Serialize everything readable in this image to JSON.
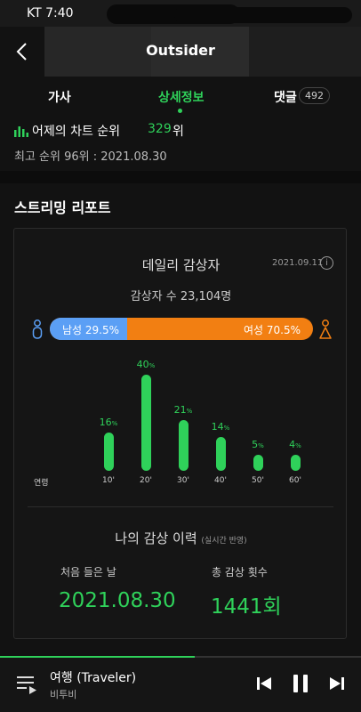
{
  "status_bar": {
    "carrier_time": "KT 7:40"
  },
  "header": {
    "title": "Outsider"
  },
  "tabs": [
    {
      "label": "가사",
      "active": false
    },
    {
      "label": "상세정보",
      "active": true
    },
    {
      "label": "댓글",
      "active": false,
      "badge": "492"
    }
  ],
  "chart_rank": {
    "label": "어제의 차트 순위",
    "rank": "329",
    "unit": "위",
    "best": "최고 순위 96위 : 2021.08.30"
  },
  "streaming_report": {
    "title": "스트리밍 리포트",
    "daily": {
      "title": "데일리 감상자",
      "date": "2021.09.11",
      "listeners": "감상자 수 23,104명",
      "male_label": "남성 29.5%",
      "female_label": "여성 70.5%",
      "male_fraction": 0.295
    },
    "age_axis_label": "연령",
    "my_history": {
      "title": "나의 감상 이력",
      "subtitle": "(실시간 반영)",
      "first_listen_label": "처음 들은 날",
      "first_listen_value": "2021.08.30",
      "total_label": "총 감상 횟수",
      "total_value": "1441회"
    }
  },
  "chart_data": {
    "type": "bar",
    "categories": [
      "10'",
      "20'",
      "30'",
      "40'",
      "50'",
      "60'"
    ],
    "values": [
      16,
      40,
      21,
      14,
      5,
      4
    ],
    "value_suffix": "%",
    "xlabel": "연령",
    "ylabel": ""
  },
  "player": {
    "title": "여행 (Traveler)",
    "artist": "비투비",
    "progress": 0.54
  },
  "colors": {
    "accent": "#2fd15a",
    "male": "#5b9ff5",
    "female": "#f27f12"
  }
}
